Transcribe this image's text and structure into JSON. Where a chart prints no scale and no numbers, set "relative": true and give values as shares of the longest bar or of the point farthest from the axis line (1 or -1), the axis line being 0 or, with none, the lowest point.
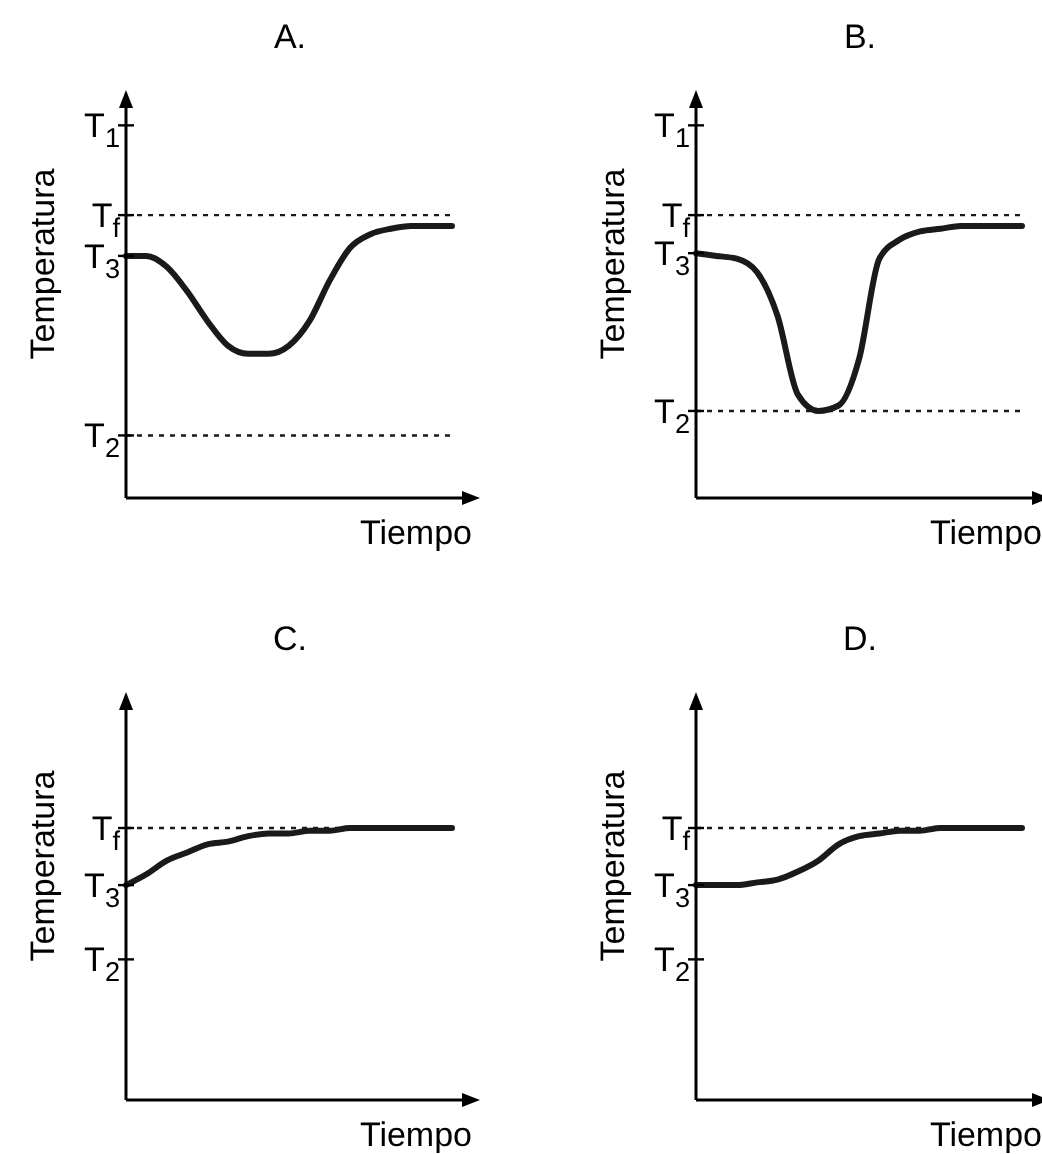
{
  "chart_data": [
    {
      "type": "line",
      "title": "A.",
      "xlabel": "Tiempo",
      "ylabel": "Temperatura",
      "relative": true,
      "categories": [
        null,
        null,
        null,
        null,
        null,
        null,
        null,
        null,
        null,
        null,
        null,
        null,
        null,
        null,
        null,
        null,
        null
      ],
      "series": [
        {
          "color": "#1a1a1a",
          "values": [
            0.89,
            0.89,
            0.85,
            0.76,
            0.65,
            0.56,
            0.53,
            0.53,
            0.56,
            0.65,
            0.8,
            0.92,
            0.97,
            0.99,
            1,
            1,
            1
          ]
        }
      ],
      "ref_lines": [
        {
          "axis": "y",
          "value": 1.04,
          "label": "T$_{f}$",
          "line_style": "dotted",
          "color": "#1a1a1a"
        },
        {
          "axis": "y",
          "value": 0.23,
          "label": "T$_{2}$",
          "line_style": "dotted",
          "color": "#1a1a1a"
        }
      ],
      "annotations": [
        "T$_{3}$",
        "T$_{1}$"
      ]
    },
    {
      "type": "line",
      "title": "B.",
      "xlabel": "Tiempo",
      "ylabel": "Temperatura",
      "relative": true,
      "categories": [
        null,
        null,
        null,
        null,
        null,
        null,
        null,
        null,
        null,
        null,
        null,
        null,
        null,
        null,
        null,
        null,
        null
      ],
      "series": [
        {
          "color": "#1a1a1a",
          "values": [
            0.9,
            0.89,
            0.88,
            0.83,
            0.67,
            0.38,
            0.32,
            0.34,
            0.51,
            0.88,
            0.95,
            0.98,
            0.99,
            1,
            1,
            1,
            1
          ]
        }
      ],
      "ref_lines": [
        {
          "axis": "y",
          "value": 1.04,
          "label": "T$_{f}$",
          "line_style": "dotted",
          "color": "#1a1a1a"
        },
        {
          "axis": "y",
          "value": 0.32,
          "label": "T$_{2}$",
          "line_style": "dotted",
          "color": "#1a1a1a"
        }
      ],
      "annotations": [
        "T$_{3}$",
        "T$_{1}$"
      ]
    },
    {
      "type": "line",
      "title": "C.",
      "xlabel": "Tiempo",
      "ylabel": "Temperatura",
      "relative": true,
      "categories": [
        null,
        null,
        null,
        null,
        null,
        null,
        null,
        null,
        null,
        null,
        null,
        null,
        null,
        null,
        null,
        null,
        null
      ],
      "series": [
        {
          "color": "#1a1a1a",
          "values": [
            0.79,
            0.83,
            0.88,
            0.91,
            0.94,
            0.95,
            0.97,
            0.98,
            0.98,
            0.99,
            0.99,
            1,
            1,
            1,
            1,
            1,
            1
          ]
        }
      ],
      "ref_lines": [
        {
          "axis": "y",
          "value": 1,
          "label": "T$_{f}$",
          "line_style": "dotted",
          "color": "#1a1a1a"
        }
      ],
      "annotations": [
        "T$_{3}$",
        "T$_{2}$"
      ]
    },
    {
      "type": "line",
      "title": "D.",
      "xlabel": "Tiempo",
      "ylabel": "Temperatura",
      "relative": true,
      "categories": [
        null,
        null,
        null,
        null,
        null,
        null,
        null,
        null,
        null,
        null,
        null,
        null,
        null,
        null,
        null,
        null,
        null
      ],
      "series": [
        {
          "color": "#1a1a1a",
          "values": [
            0.79,
            0.79,
            0.79,
            0.8,
            0.81,
            0.84,
            0.88,
            0.94,
            0.97,
            0.98,
            0.99,
            0.99,
            1,
            1,
            1,
            1,
            1
          ]
        }
      ],
      "ref_lines": [
        {
          "axis": "y",
          "value": 1,
          "label": "T$_{f}$",
          "line_style": "dotted",
          "color": "#1a1a1a"
        }
      ],
      "annotations": [
        "T$_{3}$",
        "T$_{2}$"
      ]
    }
  ]
}
